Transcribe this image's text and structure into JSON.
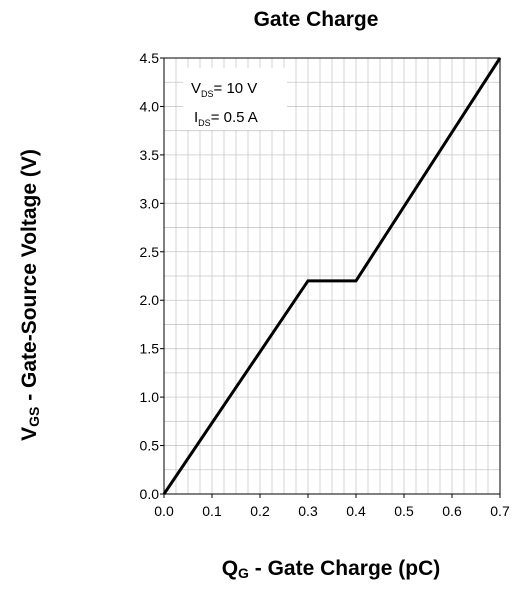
{
  "chart_data": {
    "type": "line",
    "title": "Gate Charge",
    "xlabel": {
      "main": "Q",
      "sub": "G",
      "rest": " - Gate Charge (pC)"
    },
    "ylabel": {
      "main": "V",
      "sub": "GS",
      "rest": " - Gate-Source Voltage (V)"
    },
    "xlim": [
      0.0,
      0.7
    ],
    "ylim": [
      0.0,
      4.5
    ],
    "x_ticks": [
      "0.0",
      "0.1",
      "0.2",
      "0.3",
      "0.4",
      "0.5",
      "0.6",
      "0.7"
    ],
    "y_ticks": [
      "0.0",
      "0.5",
      "1.0",
      "1.5",
      "2.0",
      "2.5",
      "3.0",
      "3.5",
      "4.0",
      "4.5"
    ],
    "grid": true,
    "series": [
      {
        "x": [
          0.0,
          0.3,
          0.4,
          0.7
        ],
        "y": [
          0.0,
          2.2,
          2.2,
          4.5
        ]
      }
    ],
    "annotations": [
      {
        "main": "V",
        "sub": "DS",
        "rest": "= 10 V"
      },
      {
        "main": "I",
        "sub": "DS",
        "rest": "= 0.5 A"
      }
    ],
    "line_color": "#000000",
    "grid_color": "#c8c8c8"
  }
}
